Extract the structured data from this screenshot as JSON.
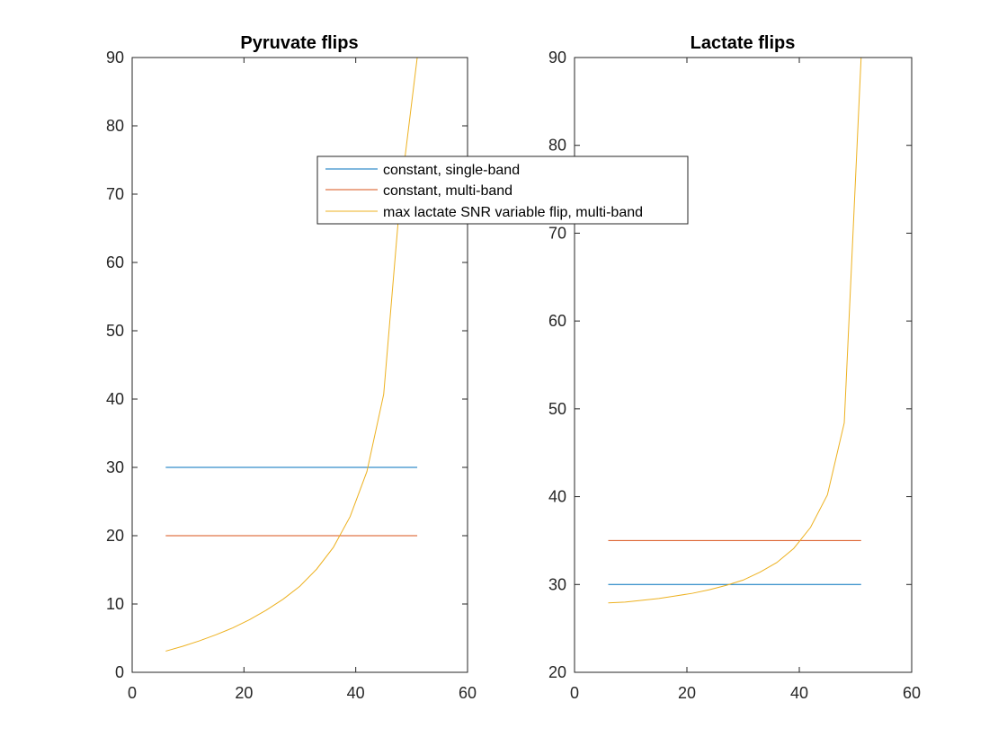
{
  "chart_data": [
    {
      "type": "line",
      "title": "Pyruvate flips",
      "xlim": [
        0,
        60
      ],
      "ylim": [
        0,
        90
      ],
      "xticks": [
        0,
        20,
        40,
        60
      ],
      "yticks": [
        0,
        10,
        20,
        30,
        40,
        50,
        60,
        70,
        80,
        90
      ],
      "grid": false,
      "series": [
        {
          "name": "constant, single-band",
          "color": "#0072BD",
          "x": [
            6,
            51
          ],
          "y": [
            30,
            30
          ]
        },
        {
          "name": "constant, multi-band",
          "color": "#D95319",
          "x": [
            6,
            51
          ],
          "y": [
            20,
            20
          ]
        },
        {
          "name": "max lactate SNR variable flip, multi-band",
          "color": "#EDB120",
          "x": [
            6,
            9,
            12,
            15,
            18,
            21,
            24,
            27,
            30,
            33,
            36,
            39,
            42,
            45,
            48,
            51
          ],
          "y": [
            3.1,
            3.8,
            4.6,
            5.5,
            6.5,
            7.7,
            9.1,
            10.7,
            12.6,
            15.1,
            18.3,
            22.8,
            29.4,
            40.7,
            70,
            90
          ]
        }
      ]
    },
    {
      "type": "line",
      "title": "Lactate flips",
      "xlim": [
        0,
        60
      ],
      "ylim": [
        20,
        90
      ],
      "xticks": [
        0,
        20,
        40,
        60
      ],
      "yticks": [
        20,
        30,
        40,
        50,
        60,
        70,
        80,
        90
      ],
      "grid": false,
      "series": [
        {
          "name": "constant, single-band",
          "color": "#0072BD",
          "x": [
            6,
            51
          ],
          "y": [
            30,
            30
          ]
        },
        {
          "name": "constant, multi-band",
          "color": "#D95319",
          "x": [
            6,
            51
          ],
          "y": [
            35,
            35
          ]
        },
        {
          "name": "max lactate SNR variable flip, multi-band",
          "color": "#EDB120",
          "x": [
            6,
            9,
            12,
            15,
            18,
            21,
            24,
            27,
            30,
            33,
            36,
            39,
            42,
            45,
            48,
            51
          ],
          "y": [
            27.9,
            28.0,
            28.2,
            28.4,
            28.7,
            29.0,
            29.4,
            29.9,
            30.5,
            31.4,
            32.5,
            34.1,
            36.5,
            40.2,
            48.4,
            90
          ]
        }
      ]
    }
  ],
  "legend": {
    "placement": "top-center",
    "entries": [
      {
        "label": "constant, single-band",
        "color": "#0072BD"
      },
      {
        "label": "constant, multi-band",
        "color": "#D95319"
      },
      {
        "label": "max lactate SNR variable flip, multi-band",
        "color": "#EDB120"
      }
    ]
  }
}
